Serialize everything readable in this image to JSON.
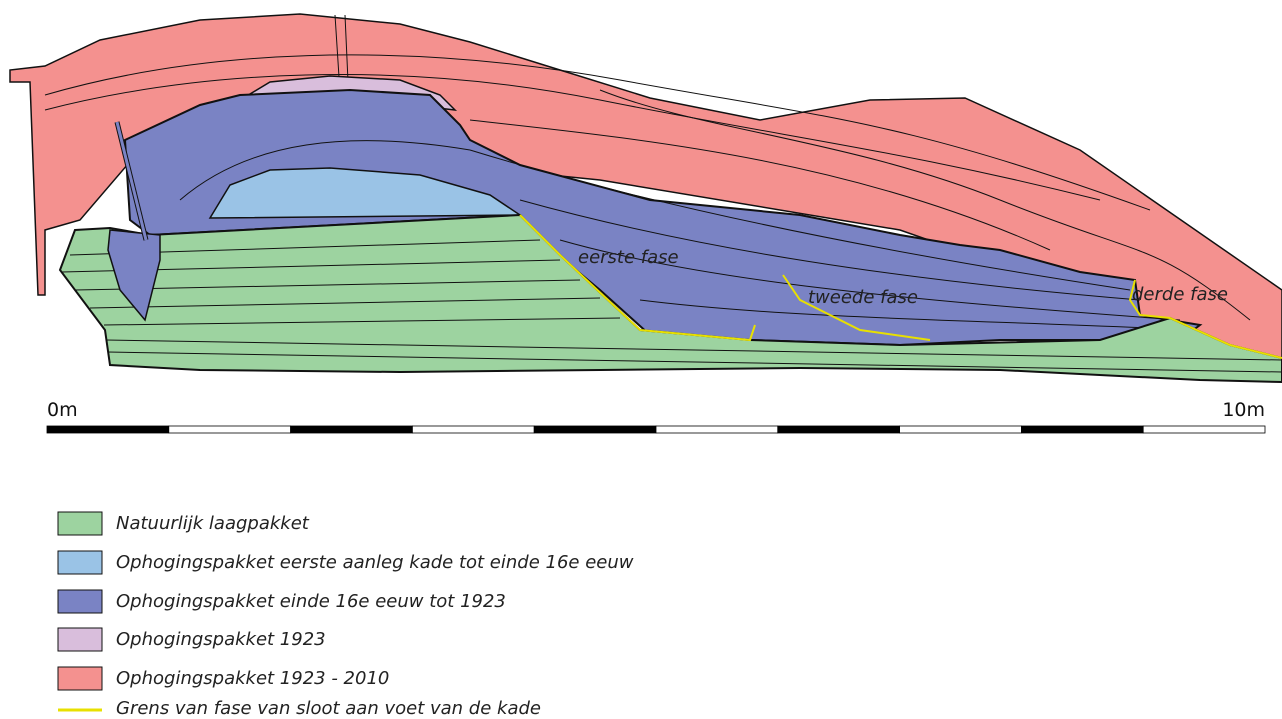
{
  "section": {
    "labels": [
      "eerste fase",
      "tweede fase",
      "derde fase"
    ]
  },
  "scale": {
    "start": "0m",
    "end": "10m"
  },
  "legend": {
    "items": [
      "Natuurlijk laagpakket",
      "Ophogingspakket eerste aanleg kade tot einde 16e eeuw",
      "Ophogingspakket einde 16e eeuw tot 1923",
      "Ophogingspakket 1923",
      "Ophogingspakket 1923 - 2010",
      "Grens van fase van sloot aan voet van de kade"
    ]
  }
}
